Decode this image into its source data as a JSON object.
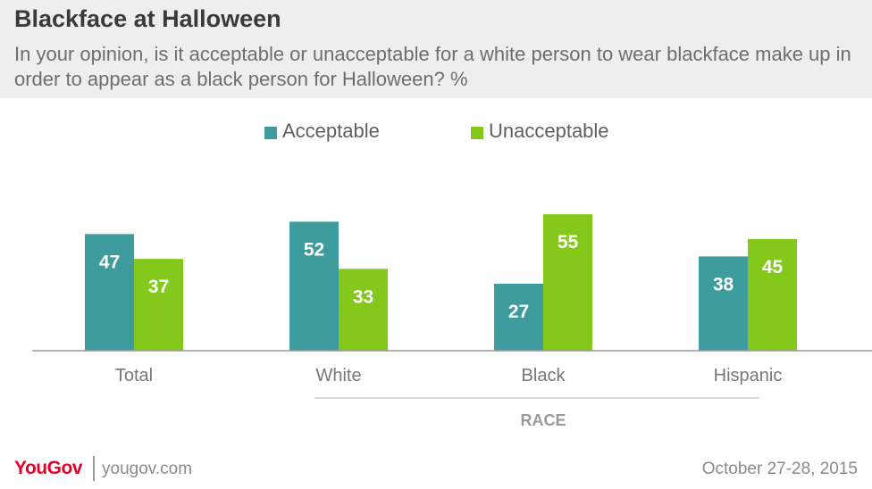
{
  "header": {
    "title": "Blackface at Halloween",
    "subtitle": "In your opinion, is it acceptable or unacceptable for a white person to wear blackface make up in order to appear as a black person for Halloween? %"
  },
  "colors": {
    "acceptable": "#3e9c9e",
    "unacceptable": "#84c81b",
    "header_bg": "#eeeeee",
    "brand": "#e4002b"
  },
  "chart_data": {
    "type": "bar",
    "categories": [
      "Total",
      "White",
      "Black",
      "Hispanic"
    ],
    "series": [
      {
        "name": "Acceptable",
        "values": [
          47,
          52,
          27,
          38
        ]
      },
      {
        "name": "Unacceptable",
        "values": [
          37,
          33,
          55,
          45
        ]
      }
    ],
    "group_label": "RACE",
    "group_categories": [
      "White",
      "Black",
      "Hispanic"
    ],
    "ylim": [
      0,
      60
    ],
    "legend_position": "top-center",
    "grid": false
  },
  "footer": {
    "brand": "YouGov",
    "url": "yougov.com",
    "date": "October 27-28, 2015"
  }
}
